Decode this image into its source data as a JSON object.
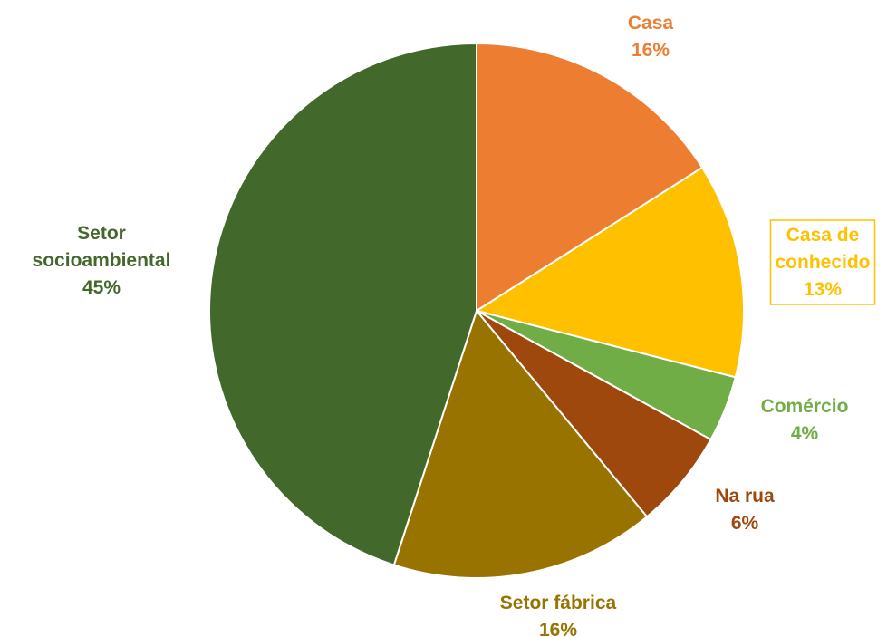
{
  "chart_data": {
    "type": "pie",
    "title": "",
    "slices": [
      {
        "label_lines": [
          "Casa"
        ],
        "value": 16,
        "value_label": "16%",
        "color": "#ED7D31",
        "boxed": false
      },
      {
        "label_lines": [
          "Casa de",
          "conhecido"
        ],
        "value": 13,
        "value_label": "13%",
        "color": "#FFC000",
        "boxed": true
      },
      {
        "label_lines": [
          "Comércio"
        ],
        "value": 4,
        "value_label": "4%",
        "color": "#70AD47",
        "boxed": false
      },
      {
        "label_lines": [
          "Na rua"
        ],
        "value": 6,
        "value_label": "6%",
        "color": "#9E480E",
        "boxed": false
      },
      {
        "label_lines": [
          "Setor fábrica"
        ],
        "value": 16,
        "value_label": "16%",
        "color": "#997300",
        "boxed": false
      },
      {
        "label_lines": [
          "Setor",
          "socioambiental"
        ],
        "value": 45,
        "value_label": "45%",
        "color": "#43682B",
        "boxed": false
      }
    ],
    "start": "12 o'clock",
    "direction": "clockwise",
    "legend": "none, labels outside slices"
  }
}
